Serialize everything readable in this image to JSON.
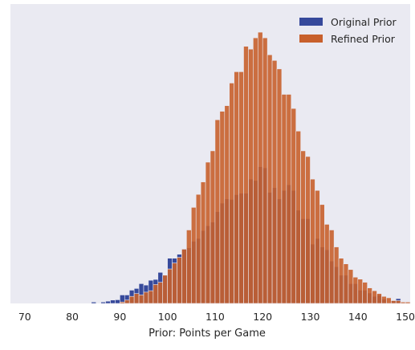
{
  "chart_data": {
    "type": "bar",
    "title": "",
    "xlabel": "Prior: Points per Game",
    "ylabel": "",
    "xlim": [
      67,
      151
    ],
    "ylim": [
      0,
      1.0
    ],
    "x_ticks": [
      70,
      80,
      90,
      100,
      110,
      120,
      130,
      140,
      150
    ],
    "grid": false,
    "legend_position": "top-right",
    "bin_width": 1,
    "series": [
      {
        "name": "Original Prior",
        "color": "#36499b",
        "bins": [
          [
            84,
            0.005
          ],
          [
            85,
            0.0
          ],
          [
            86,
            0.005
          ],
          [
            87,
            0.008
          ],
          [
            88,
            0.012
          ],
          [
            89,
            0.013
          ],
          [
            90,
            0.03
          ],
          [
            91,
            0.03
          ],
          [
            92,
            0.047
          ],
          [
            93,
            0.053
          ],
          [
            94,
            0.07
          ],
          [
            95,
            0.065
          ],
          [
            96,
            0.082
          ],
          [
            97,
            0.085
          ],
          [
            98,
            0.11
          ],
          [
            99,
            0.1
          ],
          [
            100,
            0.16
          ],
          [
            101,
            0.16
          ],
          [
            102,
            0.174
          ],
          [
            103,
            0.193
          ],
          [
            104,
            0.197
          ],
          [
            105,
            0.22
          ],
          [
            106,
            0.23
          ],
          [
            107,
            0.258
          ],
          [
            108,
            0.275
          ],
          [
            109,
            0.288
          ],
          [
            110,
            0.325
          ],
          [
            111,
            0.355
          ],
          [
            112,
            0.37
          ],
          [
            113,
            0.368
          ],
          [
            114,
            0.385
          ],
          [
            115,
            0.39
          ],
          [
            116,
            0.39
          ],
          [
            117,
            0.44
          ],
          [
            118,
            0.435
          ],
          [
            119,
            0.484
          ],
          [
            120,
            0.48
          ],
          [
            121,
            0.393
          ],
          [
            122,
            0.41
          ],
          [
            123,
            0.37
          ],
          [
            124,
            0.4
          ],
          [
            125,
            0.42
          ],
          [
            126,
            0.4
          ],
          [
            127,
            0.33
          ],
          [
            128,
            0.3
          ],
          [
            129,
            0.3
          ],
          [
            130,
            0.21
          ],
          [
            131,
            0.23
          ],
          [
            132,
            0.2
          ],
          [
            133,
            0.19
          ],
          [
            134,
            0.15
          ],
          [
            135,
            0.13
          ],
          [
            136,
            0.1
          ],
          [
            137,
            0.1
          ],
          [
            138,
            0.07
          ],
          [
            139,
            0.07
          ],
          [
            140,
            0.047
          ],
          [
            141,
            0.047
          ],
          [
            142,
            0.037
          ],
          [
            143,
            0.025
          ],
          [
            144,
            0.03
          ],
          [
            145,
            0.015
          ],
          [
            146,
            0.0
          ],
          [
            147,
            0.01
          ],
          [
            148,
            0.017
          ]
        ]
      },
      {
        "name": "Refined Prior",
        "color": "#c8602c",
        "bins": [
          [
            90,
            0.005
          ],
          [
            91,
            0.012
          ],
          [
            92,
            0.025
          ],
          [
            93,
            0.035
          ],
          [
            94,
            0.03
          ],
          [
            95,
            0.04
          ],
          [
            96,
            0.045
          ],
          [
            97,
            0.067
          ],
          [
            98,
            0.075
          ],
          [
            99,
            0.1
          ],
          [
            100,
            0.122
          ],
          [
            101,
            0.143
          ],
          [
            102,
            0.163
          ],
          [
            103,
            0.192
          ],
          [
            104,
            0.26
          ],
          [
            105,
            0.34
          ],
          [
            106,
            0.386
          ],
          [
            107,
            0.43
          ],
          [
            108,
            0.5
          ],
          [
            109,
            0.54
          ],
          [
            110,
            0.65
          ],
          [
            111,
            0.68
          ],
          [
            112,
            0.7
          ],
          [
            113,
            0.78
          ],
          [
            114,
            0.82
          ],
          [
            115,
            0.82
          ],
          [
            116,
            0.91
          ],
          [
            117,
            0.9
          ],
          [
            118,
            0.94
          ],
          [
            119,
            0.96
          ],
          [
            120,
            0.94
          ],
          [
            121,
            0.88
          ],
          [
            122,
            0.86
          ],
          [
            123,
            0.83
          ],
          [
            124,
            0.74
          ],
          [
            125,
            0.74
          ],
          [
            126,
            0.69
          ],
          [
            127,
            0.61
          ],
          [
            128,
            0.54
          ],
          [
            129,
            0.52
          ],
          [
            130,
            0.44
          ],
          [
            131,
            0.4
          ],
          [
            132,
            0.35
          ],
          [
            133,
            0.28
          ],
          [
            134,
            0.26
          ],
          [
            135,
            0.2
          ],
          [
            136,
            0.16
          ],
          [
            137,
            0.14
          ],
          [
            138,
            0.12
          ],
          [
            139,
            0.093
          ],
          [
            140,
            0.086
          ],
          [
            141,
            0.075
          ],
          [
            142,
            0.055
          ],
          [
            143,
            0.045
          ],
          [
            144,
            0.035
          ],
          [
            145,
            0.025
          ],
          [
            146,
            0.02
          ],
          [
            147,
            0.01
          ],
          [
            148,
            0.01
          ],
          [
            149,
            0.005
          ],
          [
            150,
            0.005
          ]
        ]
      }
    ]
  }
}
